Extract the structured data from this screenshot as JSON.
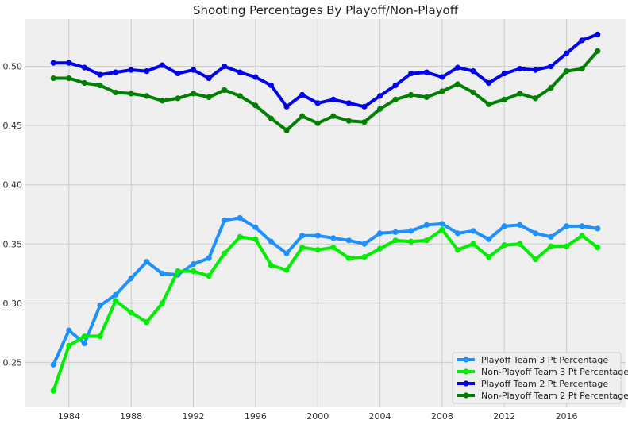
{
  "chart_data": {
    "type": "line",
    "title": "Shooting Percentages By Playoff/Non-Playoff",
    "xlabel": "",
    "ylabel": "",
    "x": [
      1983,
      1984,
      1985,
      1986,
      1987,
      1988,
      1989,
      1990,
      1991,
      1992,
      1993,
      1994,
      1995,
      1996,
      1997,
      1998,
      1999,
      2000,
      2001,
      2002,
      2003,
      2004,
      2005,
      2006,
      2007,
      2008,
      2009,
      2010,
      2011,
      2012,
      2013,
      2014,
      2015,
      2016,
      2017,
      2018
    ],
    "xlim": [
      1981.2,
      2019.8
    ],
    "ylim": [
      0.212,
      0.54
    ],
    "xticks": [
      1984,
      1988,
      1992,
      1996,
      2000,
      2004,
      2008,
      2012,
      2016
    ],
    "xtick_labels": [
      "1984",
      "1988",
      "1992",
      "1996",
      "2000",
      "2004",
      "2008",
      "2012",
      "2016"
    ],
    "yticks": [
      0.25,
      0.3,
      0.35,
      0.4,
      0.45,
      0.5
    ],
    "ytick_labels": [
      "0.25",
      "0.30",
      "0.35",
      "0.40",
      "0.45",
      "0.50"
    ],
    "grid": true,
    "legend_position": "bottom-right",
    "series": [
      {
        "name": "Playoff Team 3 Pt Percentage",
        "color": "#1e90ff",
        "values": [
          0.248,
          0.277,
          0.266,
          0.298,
          0.307,
          0.321,
          0.335,
          0.325,
          0.324,
          0.333,
          0.338,
          0.37,
          0.372,
          0.364,
          0.352,
          0.342,
          0.357,
          0.357,
          0.355,
          0.353,
          0.35,
          0.359,
          0.36,
          0.361,
          0.366,
          0.367,
          0.359,
          0.361,
          0.354,
          0.365,
          0.366,
          0.359,
          0.356,
          0.365,
          0.365,
          0.363
        ]
      },
      {
        "name": "Non-Playoff Team 3 Pt Percentage",
        "color": "#00ee00",
        "values": [
          0.226,
          0.264,
          0.272,
          0.272,
          0.302,
          0.292,
          0.284,
          0.3,
          0.327,
          0.327,
          0.323,
          0.342,
          0.356,
          0.354,
          0.332,
          0.328,
          0.347,
          0.345,
          0.347,
          0.338,
          0.339,
          0.346,
          0.353,
          0.352,
          0.353,
          0.362,
          0.345,
          0.35,
          0.339,
          0.349,
          0.35,
          0.337,
          0.348,
          0.348,
          0.357,
          0.347
        ]
      },
      {
        "name": "Playoff Team 2 Pt Percentage",
        "color": "#0000ee",
        "values": [
          0.503,
          0.503,
          0.499,
          0.493,
          0.495,
          0.497,
          0.496,
          0.501,
          0.494,
          0.497,
          0.49,
          0.5,
          0.495,
          0.491,
          0.484,
          0.466,
          0.476,
          0.469,
          0.472,
          0.469,
          0.466,
          0.475,
          0.484,
          0.494,
          0.495,
          0.491,
          0.499,
          0.496,
          0.486,
          0.494,
          0.498,
          0.497,
          0.5,
          0.511,
          0.522,
          0.527
        ]
      },
      {
        "name": "Non-Playoff Team 2 Pt Percentage",
        "color": "#008000",
        "values": [
          0.49,
          0.49,
          0.486,
          0.484,
          0.478,
          0.477,
          0.475,
          0.471,
          0.473,
          0.477,
          0.474,
          0.48,
          0.475,
          0.467,
          0.456,
          0.446,
          0.458,
          0.452,
          0.458,
          0.454,
          0.453,
          0.464,
          0.472,
          0.476,
          0.474,
          0.479,
          0.485,
          0.478,
          0.468,
          0.472,
          0.477,
          0.473,
          0.482,
          0.496,
          0.498,
          0.513
        ]
      }
    ]
  }
}
